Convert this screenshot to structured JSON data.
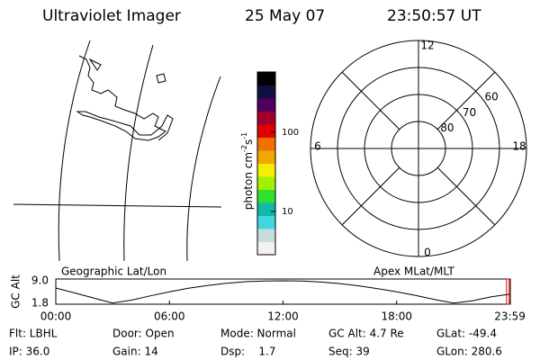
{
  "header": {
    "instrument": "Ultraviolet Imager",
    "date": "25 May 07",
    "time": "23:50:57 UT"
  },
  "map": {
    "label": "Geographic Lat/Lon"
  },
  "chart_data": [
    {
      "type": "colorbar",
      "label": [
        "photon cm",
        "-2",
        "s",
        "-1"
      ],
      "log": true,
      "zlim": [
        2.85,
        575
      ],
      "zticks": [
        10,
        100
      ],
      "colors": [
        "#f2f2f2",
        "#c8dcdc",
        "#40d8e0",
        "#10b8a8",
        "#30e030",
        "#a0f000",
        "#f0f000",
        "#f0a800",
        "#f07000",
        "#e00000",
        "#a00030",
        "#500060",
        "#101040",
        "#000000"
      ]
    },
    {
      "type": "polar",
      "label": "Apex MLat/MLT",
      "rlim": [
        90,
        50
      ],
      "rticks": [
        80,
        70,
        60
      ],
      "angle_ticks": [
        12,
        6,
        0,
        18
      ]
    },
    {
      "type": "line",
      "ylabel": "GC Alt",
      "xlim": [
        0,
        24
      ],
      "ylim": [
        1.8,
        9.0
      ],
      "yticks": [
        {
          "value": 9.0,
          "label": "9.0"
        },
        {
          "value": 1.8,
          "label": "1.8"
        }
      ],
      "xticks": [
        {
          "value": 0,
          "label": "00:00"
        },
        {
          "value": 6,
          "label": "06:00"
        },
        {
          "value": 12,
          "label": "12:00"
        },
        {
          "value": 18,
          "label": "18:00"
        },
        {
          "value": 23.98,
          "label": "23:59"
        }
      ],
      "marker_x": 23.85,
      "marker_color": "#e00000",
      "series": [
        {
          "color": "#000000",
          "x": [
            0,
            1,
            2,
            3,
            4,
            5,
            6,
            7,
            8,
            9,
            10,
            11,
            12,
            13,
            14,
            15,
            16,
            17,
            18,
            19,
            20,
            21,
            22,
            23,
            23.98
          ],
          "values": [
            6.7,
            5.1,
            3.5,
            1.9,
            2.8,
            4.2,
            5.5,
            6.6,
            7.5,
            8.2,
            8.7,
            8.95,
            9.0,
            8.9,
            8.6,
            8.1,
            7.4,
            6.5,
            5.5,
            4.3,
            3.0,
            1.9,
            2.6,
            3.9,
            4.7
          ]
        }
      ]
    }
  ],
  "info": {
    "rows": [
      [
        "Flt: LBHL",
        "Door: Open",
        "Mode: Normal",
        "GC Alt: 4.7 Re",
        "GLat: -49.4"
      ],
      [
        "IP: 36.0",
        "Gain: 14",
        "Dsp:    1.7",
        "Seq: 39",
        "GLon: 280.6"
      ]
    ]
  }
}
